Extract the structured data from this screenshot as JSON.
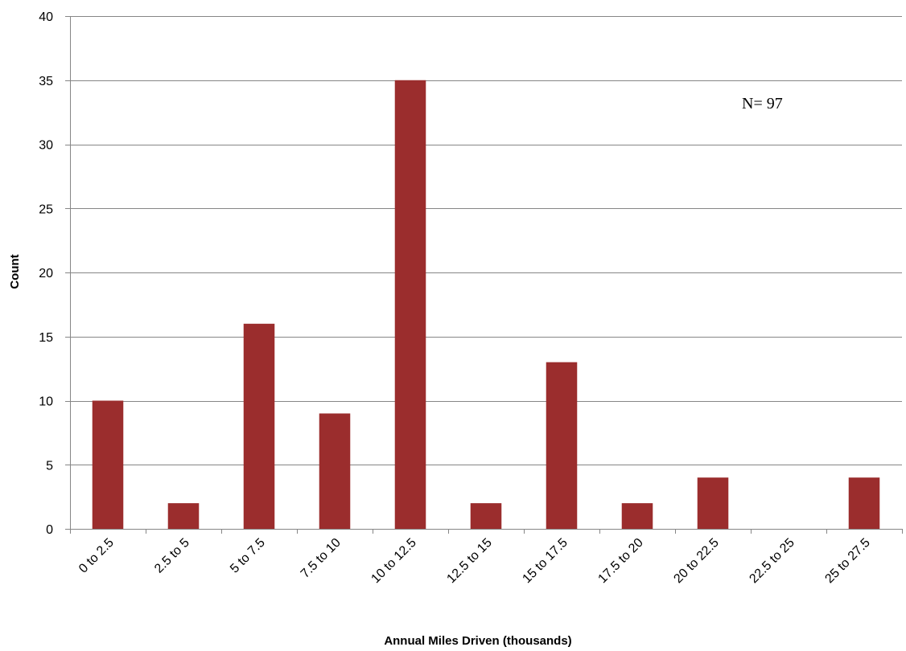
{
  "chart_data": {
    "type": "bar",
    "title": "",
    "xlabel": "Annual Miles Driven (thousands)",
    "ylabel": "Count",
    "categories": [
      "0 to 2.5",
      "2.5 to 5",
      "5 to 7.5",
      "7.5 to 10",
      "10 to 12.5",
      "12.5 to 15",
      "15 to 17.5",
      "17.5 to 20",
      "20 to 22.5",
      "22.5 to 25",
      "25 to 27.5"
    ],
    "values": [
      10,
      2,
      16,
      9,
      35,
      2,
      13,
      2,
      4,
      0,
      4
    ],
    "ylim": [
      0,
      40
    ],
    "yticks": [
      0,
      5,
      10,
      15,
      20,
      25,
      30,
      35,
      40
    ],
    "grid": true,
    "legend": "none",
    "annotations": [
      {
        "text": "N= 97"
      }
    ],
    "colors": {
      "bar": "#9B2D2D",
      "grid": "#868686",
      "axis": "#868686"
    }
  }
}
